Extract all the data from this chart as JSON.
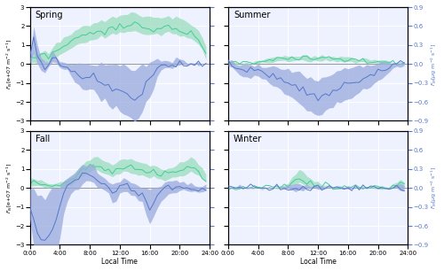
{
  "seasons": [
    "Spring",
    "Summer",
    "Fall",
    "Winter"
  ],
  "season_keys": [
    "spring",
    "summer",
    "fall",
    "winter"
  ],
  "n_points": 48,
  "time_labels": [
    "0:00",
    "4:00",
    "8:00",
    "12:00",
    "16:00",
    "20:00",
    "24:00"
  ],
  "time_ticks": [
    0,
    8,
    16,
    24,
    32,
    40,
    48
  ],
  "left_ylim": [
    -3,
    3
  ],
  "right_ylim": [
    -0.9,
    0.9
  ],
  "left_yticks": [
    -3,
    -2,
    -1,
    0,
    1,
    2,
    3
  ],
  "right_yticks": [
    -0.9,
    -0.6,
    -0.3,
    0,
    0.3,
    0.6,
    0.9
  ],
  "green_color": "#44cc99",
  "green_fill": "#99ddbb",
  "blue_color": "#5577cc",
  "blue_fill": "#99aadd",
  "bg_color": "#eef2ff",
  "grid_color": "#ffffff",
  "title_fontsize": 7,
  "label_fontsize": 5.5,
  "tick_fontsize": 5.0,
  "spring_gm": [
    0.25,
    0.3,
    0.25,
    0.35,
    0.4,
    0.35,
    0.55,
    0.7,
    0.8,
    0.9,
    1.0,
    1.1,
    1.3,
    1.4,
    1.5,
    1.5,
    1.55,
    1.6,
    1.7,
    1.8,
    1.75,
    1.85,
    1.9,
    1.85,
    1.95,
    2.0,
    2.0,
    2.05,
    2.1,
    2.0,
    1.9,
    1.85,
    1.9,
    1.85,
    1.9,
    1.85,
    1.9,
    1.95,
    1.85,
    1.9,
    1.8,
    1.75,
    1.7,
    1.6,
    1.5,
    1.3,
    1.0,
    0.5
  ],
  "spring_gq1": [
    0.1,
    0.1,
    0.05,
    0.1,
    0.15,
    0.1,
    0.2,
    0.35,
    0.5,
    0.6,
    0.75,
    0.85,
    1.0,
    1.1,
    1.15,
    1.2,
    1.25,
    1.3,
    1.4,
    1.5,
    1.4,
    1.5,
    1.6,
    1.55,
    1.65,
    1.7,
    1.7,
    1.75,
    1.8,
    1.7,
    1.6,
    1.55,
    1.6,
    1.55,
    1.6,
    1.55,
    1.6,
    1.65,
    1.55,
    1.6,
    1.5,
    1.45,
    1.4,
    1.3,
    1.2,
    1.0,
    0.75,
    0.2
  ],
  "spring_gq3": [
    0.5,
    0.55,
    0.5,
    0.6,
    0.65,
    0.6,
    0.9,
    1.1,
    1.2,
    1.35,
    1.5,
    1.6,
    1.7,
    1.8,
    1.95,
    2.0,
    2.05,
    2.1,
    2.2,
    2.3,
    2.2,
    2.4,
    2.5,
    2.4,
    2.55,
    2.65,
    2.6,
    2.7,
    2.75,
    2.6,
    2.5,
    2.45,
    2.5,
    2.45,
    2.5,
    2.4,
    2.5,
    2.55,
    2.4,
    2.5,
    2.4,
    2.35,
    2.2,
    2.1,
    2.0,
    1.75,
    1.4,
    0.9
  ],
  "spring_bm": [
    0.05,
    0.4,
    0.15,
    0.0,
    -0.05,
    0.0,
    0.1,
    0.05,
    0.0,
    -0.02,
    -0.05,
    -0.1,
    -0.15,
    -0.15,
    -0.2,
    -0.2,
    -0.2,
    -0.2,
    -0.3,
    -0.3,
    -0.3,
    -0.35,
    -0.4,
    -0.35,
    -0.45,
    -0.45,
    -0.5,
    -0.55,
    -0.6,
    -0.5,
    -0.45,
    -0.3,
    -0.2,
    -0.15,
    -0.05,
    -0.02,
    0.0,
    0.0,
    0.0,
    0.02,
    0.03,
    0.02,
    0.0,
    0.0,
    0.0,
    0.0,
    0.0,
    0.0
  ],
  "spring_bq1": [
    0.0,
    0.2,
    0.0,
    -0.1,
    -0.15,
    -0.05,
    0.0,
    0.0,
    -0.05,
    -0.08,
    -0.1,
    -0.2,
    -0.3,
    -0.3,
    -0.4,
    -0.4,
    -0.4,
    -0.4,
    -0.5,
    -0.6,
    -0.55,
    -0.65,
    -0.7,
    -0.65,
    -0.75,
    -0.8,
    -0.85,
    -0.85,
    -0.9,
    -0.85,
    -0.75,
    -0.6,
    -0.5,
    -0.4,
    -0.2,
    -0.1,
    -0.05,
    -0.05,
    -0.05,
    -0.02,
    -0.01,
    0.0,
    0.0,
    0.0,
    0.0,
    0.0,
    0.0,
    0.0
  ],
  "spring_bq3": [
    0.1,
    0.6,
    0.3,
    0.1,
    0.05,
    0.05,
    0.2,
    0.1,
    0.05,
    0.05,
    0.0,
    0.0,
    0.0,
    0.02,
    0.0,
    0.0,
    0.0,
    0.0,
    0.0,
    0.02,
    0.0,
    0.0,
    0.0,
    0.0,
    0.0,
    0.0,
    -0.05,
    -0.1,
    -0.1,
    -0.05,
    0.0,
    0.0,
    0.0,
    0.05,
    0.1,
    0.05,
    0.05,
    0.05,
    0.05,
    0.08,
    0.08,
    0.05,
    0.02,
    0.0,
    0.02,
    0.02,
    0.01,
    0.01
  ],
  "summer_gm": [
    0.05,
    0.08,
    0.05,
    0.02,
    0.05,
    0.08,
    0.05,
    0.08,
    0.12,
    0.12,
    0.18,
    0.2,
    0.22,
    0.28,
    0.28,
    0.3,
    0.28,
    0.3,
    0.28,
    0.3,
    0.28,
    0.3,
    0.28,
    0.3,
    0.28,
    0.28,
    0.28,
    0.28,
    0.28,
    0.27,
    0.25,
    0.25,
    0.23,
    0.22,
    0.2,
    0.2,
    0.2,
    0.18,
    0.18,
    0.18,
    0.18,
    0.15,
    0.12,
    0.1,
    0.08,
    0.08,
    0.06,
    0.05
  ],
  "summer_gq1": [
    0.0,
    0.02,
    0.0,
    0.0,
    0.0,
    0.02,
    0.0,
    0.02,
    0.05,
    0.05,
    0.08,
    0.1,
    0.12,
    0.17,
    0.18,
    0.2,
    0.18,
    0.2,
    0.18,
    0.2,
    0.18,
    0.2,
    0.18,
    0.2,
    0.18,
    0.18,
    0.17,
    0.17,
    0.17,
    0.16,
    0.14,
    0.14,
    0.12,
    0.11,
    0.1,
    0.09,
    0.09,
    0.08,
    0.07,
    0.07,
    0.07,
    0.05,
    0.03,
    0.02,
    0.01,
    0.01,
    0.01,
    0.0
  ],
  "summer_gq3": [
    0.12,
    0.15,
    0.1,
    0.05,
    0.1,
    0.15,
    0.1,
    0.15,
    0.2,
    0.2,
    0.28,
    0.32,
    0.35,
    0.42,
    0.42,
    0.45,
    0.42,
    0.45,
    0.42,
    0.45,
    0.42,
    0.45,
    0.42,
    0.45,
    0.42,
    0.42,
    0.42,
    0.42,
    0.42,
    0.4,
    0.38,
    0.38,
    0.35,
    0.33,
    0.3,
    0.28,
    0.28,
    0.26,
    0.25,
    0.25,
    0.25,
    0.22,
    0.18,
    0.15,
    0.12,
    0.12,
    0.1,
    0.08
  ],
  "summer_bm": [
    0.0,
    -0.02,
    -0.05,
    -0.1,
    -0.1,
    -0.12,
    -0.12,
    -0.1,
    -0.1,
    -0.12,
    -0.15,
    -0.18,
    -0.2,
    -0.22,
    -0.25,
    -0.28,
    -0.3,
    -0.32,
    -0.35,
    -0.38,
    -0.42,
    -0.45,
    -0.48,
    -0.5,
    -0.52,
    -0.5,
    -0.48,
    -0.45,
    -0.42,
    -0.4,
    -0.38,
    -0.35,
    -0.32,
    -0.3,
    -0.28,
    -0.25,
    -0.22,
    -0.2,
    -0.18,
    -0.15,
    -0.12,
    -0.1,
    -0.08,
    -0.05,
    -0.02,
    -0.01,
    0.0,
    0.0
  ],
  "summer_bq1": [
    -0.05,
    -0.08,
    -0.1,
    -0.18,
    -0.2,
    -0.22,
    -0.22,
    -0.2,
    -0.2,
    -0.22,
    -0.25,
    -0.3,
    -0.35,
    -0.38,
    -0.42,
    -0.45,
    -0.5,
    -0.52,
    -0.58,
    -0.62,
    -0.68,
    -0.72,
    -0.75,
    -0.78,
    -0.82,
    -0.8,
    -0.75,
    -0.72,
    -0.68,
    -0.65,
    -0.62,
    -0.58,
    -0.55,
    -0.52,
    -0.48,
    -0.45,
    -0.4,
    -0.38,
    -0.35,
    -0.3,
    -0.25,
    -0.22,
    -0.18,
    -0.12,
    -0.08,
    -0.05,
    -0.02,
    -0.02
  ],
  "summer_bq3": [
    0.05,
    0.05,
    0.0,
    -0.02,
    -0.02,
    -0.02,
    -0.02,
    -0.02,
    -0.02,
    -0.05,
    -0.05,
    -0.05,
    -0.05,
    -0.05,
    -0.08,
    -0.1,
    -0.1,
    -0.12,
    -0.12,
    -0.15,
    -0.18,
    -0.2,
    -0.22,
    -0.25,
    -0.25,
    -0.22,
    -0.2,
    -0.18,
    -0.15,
    -0.12,
    -0.1,
    -0.08,
    -0.08,
    -0.05,
    -0.05,
    -0.03,
    -0.02,
    -0.02,
    -0.02,
    -0.02,
    0.0,
    0.0,
    0.0,
    0.0,
    0.02,
    0.02,
    0.02,
    0.02
  ],
  "fall_gm": [
    0.3,
    0.25,
    0.2,
    0.18,
    0.15,
    0.12,
    0.1,
    0.12,
    0.15,
    0.2,
    0.3,
    0.35,
    0.5,
    0.7,
    0.9,
    1.0,
    1.1,
    1.2,
    1.2,
    1.1,
    1.0,
    0.9,
    0.85,
    0.95,
    1.05,
    1.1,
    1.1,
    1.05,
    1.0,
    0.95,
    0.9,
    0.85,
    0.8,
    0.8,
    0.75,
    0.7,
    0.7,
    0.75,
    0.8,
    0.85,
    0.9,
    0.95,
    1.0,
    1.1,
    1.0,
    0.9,
    0.7,
    0.5
  ],
  "fall_gq1": [
    0.1,
    0.08,
    0.05,
    0.04,
    0.02,
    0.01,
    0.0,
    0.02,
    0.05,
    0.08,
    0.15,
    0.2,
    0.3,
    0.45,
    0.65,
    0.75,
    0.85,
    0.95,
    0.95,
    0.85,
    0.75,
    0.65,
    0.6,
    0.7,
    0.8,
    0.85,
    0.85,
    0.8,
    0.75,
    0.7,
    0.65,
    0.6,
    0.55,
    0.55,
    0.5,
    0.45,
    0.45,
    0.5,
    0.55,
    0.6,
    0.65,
    0.7,
    0.75,
    0.85,
    0.75,
    0.65,
    0.5,
    0.3
  ],
  "fall_gq3": [
    0.55,
    0.48,
    0.4,
    0.35,
    0.3,
    0.25,
    0.2,
    0.25,
    0.3,
    0.38,
    0.5,
    0.6,
    0.8,
    1.0,
    1.2,
    1.4,
    1.5,
    1.6,
    1.6,
    1.5,
    1.4,
    1.3,
    1.2,
    1.35,
    1.5,
    1.55,
    1.55,
    1.5,
    1.45,
    1.4,
    1.35,
    1.3,
    1.2,
    1.2,
    1.1,
    1.0,
    1.0,
    1.05,
    1.15,
    1.2,
    1.35,
    1.4,
    1.5,
    1.65,
    1.5,
    1.3,
    1.05,
    0.75
  ],
  "fall_bm": [
    -0.3,
    -0.5,
    -0.7,
    -0.8,
    -0.9,
    -0.8,
    -0.65,
    -0.5,
    -0.3,
    -0.1,
    0.0,
    0.05,
    0.1,
    0.15,
    0.2,
    0.2,
    0.2,
    0.2,
    0.1,
    0.05,
    0.05,
    0.0,
    -0.1,
    -0.05,
    0.0,
    0.05,
    0.05,
    0.0,
    -0.05,
    -0.1,
    -0.1,
    -0.2,
    -0.3,
    -0.2,
    -0.1,
    -0.05,
    0.0,
    0.0,
    0.0,
    0.0,
    0.0,
    0.0,
    0.0,
    0.0,
    0.0,
    -0.02,
    0.0,
    0.0
  ],
  "fall_bq1": [
    -0.5,
    -0.9,
    -1.2,
    -1.5,
    -1.8,
    -1.6,
    -1.4,
    -1.1,
    -0.8,
    -0.4,
    -0.2,
    -0.1,
    -0.05,
    0.0,
    0.05,
    0.1,
    0.1,
    0.1,
    0.0,
    -0.05,
    -0.05,
    -0.1,
    -0.25,
    -0.2,
    -0.1,
    -0.05,
    -0.05,
    -0.1,
    -0.15,
    -0.2,
    -0.25,
    -0.4,
    -0.55,
    -0.45,
    -0.35,
    -0.2,
    -0.15,
    -0.1,
    -0.1,
    -0.1,
    -0.05,
    -0.05,
    -0.05,
    -0.05,
    -0.05,
    -0.08,
    -0.05,
    -0.05
  ],
  "fall_bq3": [
    0.0,
    0.0,
    -0.1,
    -0.1,
    -0.2,
    -0.1,
    0.0,
    0.0,
    0.0,
    0.1,
    0.15,
    0.2,
    0.25,
    0.3,
    0.38,
    0.38,
    0.38,
    0.35,
    0.25,
    0.18,
    0.15,
    0.1,
    0.05,
    0.1,
    0.12,
    0.15,
    0.15,
    0.1,
    0.05,
    0.02,
    0.02,
    0.0,
    -0.02,
    0.02,
    0.05,
    0.05,
    0.1,
    0.1,
    0.12,
    0.12,
    0.1,
    0.08,
    0.08,
    0.08,
    0.06,
    0.02,
    0.05,
    0.05
  ],
  "winter_gm": [
    0.02,
    0.02,
    0.02,
    0.02,
    0.02,
    0.02,
    0.02,
    0.02,
    0.02,
    0.02,
    0.02,
    0.02,
    0.02,
    0.02,
    0.02,
    0.05,
    0.12,
    0.25,
    0.4,
    0.55,
    0.45,
    0.35,
    0.25,
    0.18,
    0.12,
    0.08,
    0.05,
    0.04,
    0.03,
    0.03,
    0.03,
    0.03,
    0.03,
    0.03,
    0.03,
    0.03,
    0.03,
    0.03,
    0.03,
    0.03,
    0.03,
    0.03,
    0.03,
    0.03,
    0.05,
    0.12,
    0.2,
    0.15
  ],
  "winter_gq1": [
    0.0,
    0.0,
    0.0,
    0.0,
    0.0,
    0.0,
    0.0,
    0.0,
    0.0,
    0.0,
    0.0,
    0.0,
    0.0,
    0.0,
    0.0,
    0.02,
    0.04,
    0.08,
    0.15,
    0.25,
    0.18,
    0.12,
    0.08,
    0.04,
    0.02,
    0.01,
    0.0,
    0.0,
    0.0,
    0.0,
    0.0,
    0.0,
    0.0,
    0.0,
    0.0,
    0.0,
    0.0,
    0.0,
    0.0,
    0.0,
    0.0,
    0.0,
    0.0,
    0.0,
    0.0,
    0.02,
    0.05,
    0.02
  ],
  "winter_gq3": [
    0.06,
    0.06,
    0.05,
    0.05,
    0.05,
    0.05,
    0.05,
    0.05,
    0.05,
    0.05,
    0.05,
    0.05,
    0.05,
    0.05,
    0.05,
    0.12,
    0.25,
    0.5,
    0.75,
    1.0,
    0.85,
    0.65,
    0.5,
    0.35,
    0.25,
    0.18,
    0.12,
    0.1,
    0.08,
    0.08,
    0.08,
    0.08,
    0.08,
    0.08,
    0.08,
    0.08,
    0.08,
    0.08,
    0.08,
    0.08,
    0.08,
    0.08,
    0.08,
    0.08,
    0.12,
    0.25,
    0.45,
    0.35
  ],
  "winter_bm": [
    0.0,
    0.0,
    0.0,
    0.0,
    0.0,
    0.0,
    0.0,
    0.0,
    0.0,
    0.0,
    0.0,
    0.0,
    0.0,
    0.0,
    0.0,
    0.0,
    0.0,
    0.0,
    0.0,
    0.0,
    0.0,
    0.0,
    0.0,
    0.0,
    0.0,
    0.0,
    0.0,
    0.0,
    0.0,
    0.0,
    0.0,
    0.0,
    0.0,
    0.0,
    0.0,
    0.0,
    0.0,
    0.0,
    0.0,
    0.0,
    0.0,
    0.0,
    0.0,
    0.0,
    0.0,
    0.0,
    0.0,
    0.0
  ],
  "winter_bq1": [
    0.0,
    0.0,
    0.0,
    0.0,
    0.0,
    0.0,
    0.0,
    0.0,
    0.0,
    0.0,
    0.0,
    0.0,
    0.0,
    0.0,
    0.0,
    -0.01,
    -0.02,
    -0.03,
    -0.05,
    -0.05,
    -0.04,
    -0.03,
    -0.02,
    -0.01,
    0.0,
    0.0,
    0.0,
    0.0,
    0.0,
    0.0,
    0.0,
    0.0,
    0.0,
    0.0,
    0.0,
    0.0,
    0.0,
    0.0,
    0.0,
    0.0,
    0.0,
    0.0,
    0.0,
    0.0,
    -0.01,
    -0.02,
    -0.04,
    -0.02
  ],
  "winter_bq3": [
    0.01,
    0.01,
    0.01,
    0.01,
    0.01,
    0.01,
    0.01,
    0.01,
    0.01,
    0.01,
    0.01,
    0.01,
    0.01,
    0.01,
    0.01,
    0.02,
    0.04,
    0.05,
    0.06,
    0.06,
    0.06,
    0.05,
    0.04,
    0.03,
    0.02,
    0.01,
    0.01,
    0.01,
    0.01,
    0.01,
    0.01,
    0.01,
    0.01,
    0.01,
    0.01,
    0.01,
    0.01,
    0.01,
    0.01,
    0.01,
    0.01,
    0.01,
    0.01,
    0.01,
    0.02,
    0.04,
    0.08,
    0.05
  ]
}
